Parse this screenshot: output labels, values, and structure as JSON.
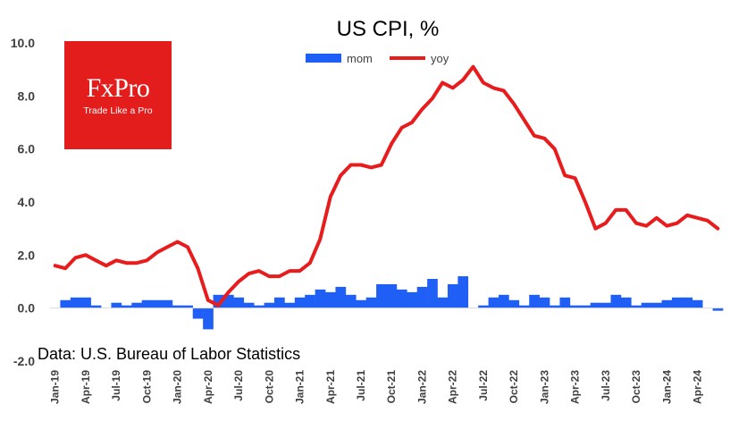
{
  "logo": {
    "brand": "FxPro",
    "tagline": "Trade Like a Pro"
  },
  "source_note": "Data: U.S. Bureau of Labor Statistics",
  "colors": {
    "mom": "#1f5ff5",
    "yoy": "#e81c1c",
    "logo_bg": "#e31c1c"
  },
  "chart_data": {
    "type": "bar+line",
    "title": "US CPI, %",
    "legend": [
      {
        "name": "mom",
        "style": "bar"
      },
      {
        "name": "yoy",
        "style": "line"
      }
    ],
    "legend_position": "top-center",
    "ylim": [
      -2.0,
      10.0
    ],
    "yticks": [
      "10.0",
      "8.0",
      "6.0",
      "4.0",
      "2.0",
      "0.0",
      "-2.0"
    ],
    "xticks": [
      "Jan-19",
      "Apr-19",
      "Jul-19",
      "Oct-19",
      "Jan-20",
      "Apr-20",
      "Jul-20",
      "Oct-20",
      "Jan-21",
      "Apr-21",
      "Jul-21",
      "Oct-21",
      "Jan-22",
      "Apr-22",
      "Jul-22",
      "Oct-22",
      "Jan-23",
      "Apr-23",
      "Jul-23",
      "Oct-23",
      "Jan-24",
      "Apr-24"
    ],
    "grid": false,
    "series": [
      {
        "name": "mom",
        "type": "bar",
        "values": [
          0.0,
          0.3,
          0.4,
          0.4,
          0.1,
          0.0,
          0.2,
          0.1,
          0.2,
          0.3,
          0.3,
          0.3,
          0.1,
          0.1,
          -0.4,
          -0.8,
          0.5,
          0.5,
          0.4,
          0.2,
          0.1,
          0.2,
          0.4,
          0.2,
          0.4,
          0.5,
          0.7,
          0.6,
          0.8,
          0.5,
          0.3,
          0.4,
          0.9,
          0.9,
          0.7,
          0.6,
          0.8,
          1.1,
          0.4,
          0.9,
          1.2,
          0.0,
          0.1,
          0.4,
          0.5,
          0.3,
          0.1,
          0.5,
          0.4,
          0.1,
          0.4,
          0.1,
          0.1,
          0.2,
          0.2,
          0.5,
          0.4,
          0.1,
          0.2,
          0.2,
          0.3,
          0.4,
          0.4,
          0.3,
          0.0,
          -0.1
        ]
      },
      {
        "name": "yoy",
        "type": "line",
        "values": [
          1.6,
          1.5,
          1.9,
          2.0,
          1.8,
          1.6,
          1.8,
          1.7,
          1.7,
          1.8,
          2.1,
          2.3,
          2.5,
          2.3,
          1.5,
          0.3,
          0.1,
          0.6,
          1.0,
          1.3,
          1.4,
          1.2,
          1.2,
          1.4,
          1.4,
          1.7,
          2.6,
          4.2,
          5.0,
          5.4,
          5.4,
          5.3,
          5.4,
          6.2,
          6.8,
          7.0,
          7.5,
          7.9,
          8.5,
          8.3,
          8.6,
          9.1,
          8.5,
          8.3,
          8.2,
          7.7,
          7.1,
          6.5,
          6.4,
          6.0,
          5.0,
          4.9,
          4.0,
          3.0,
          3.2,
          3.7,
          3.7,
          3.2,
          3.1,
          3.4,
          3.1,
          3.2,
          3.5,
          3.4,
          3.3,
          3.0
        ]
      }
    ]
  }
}
